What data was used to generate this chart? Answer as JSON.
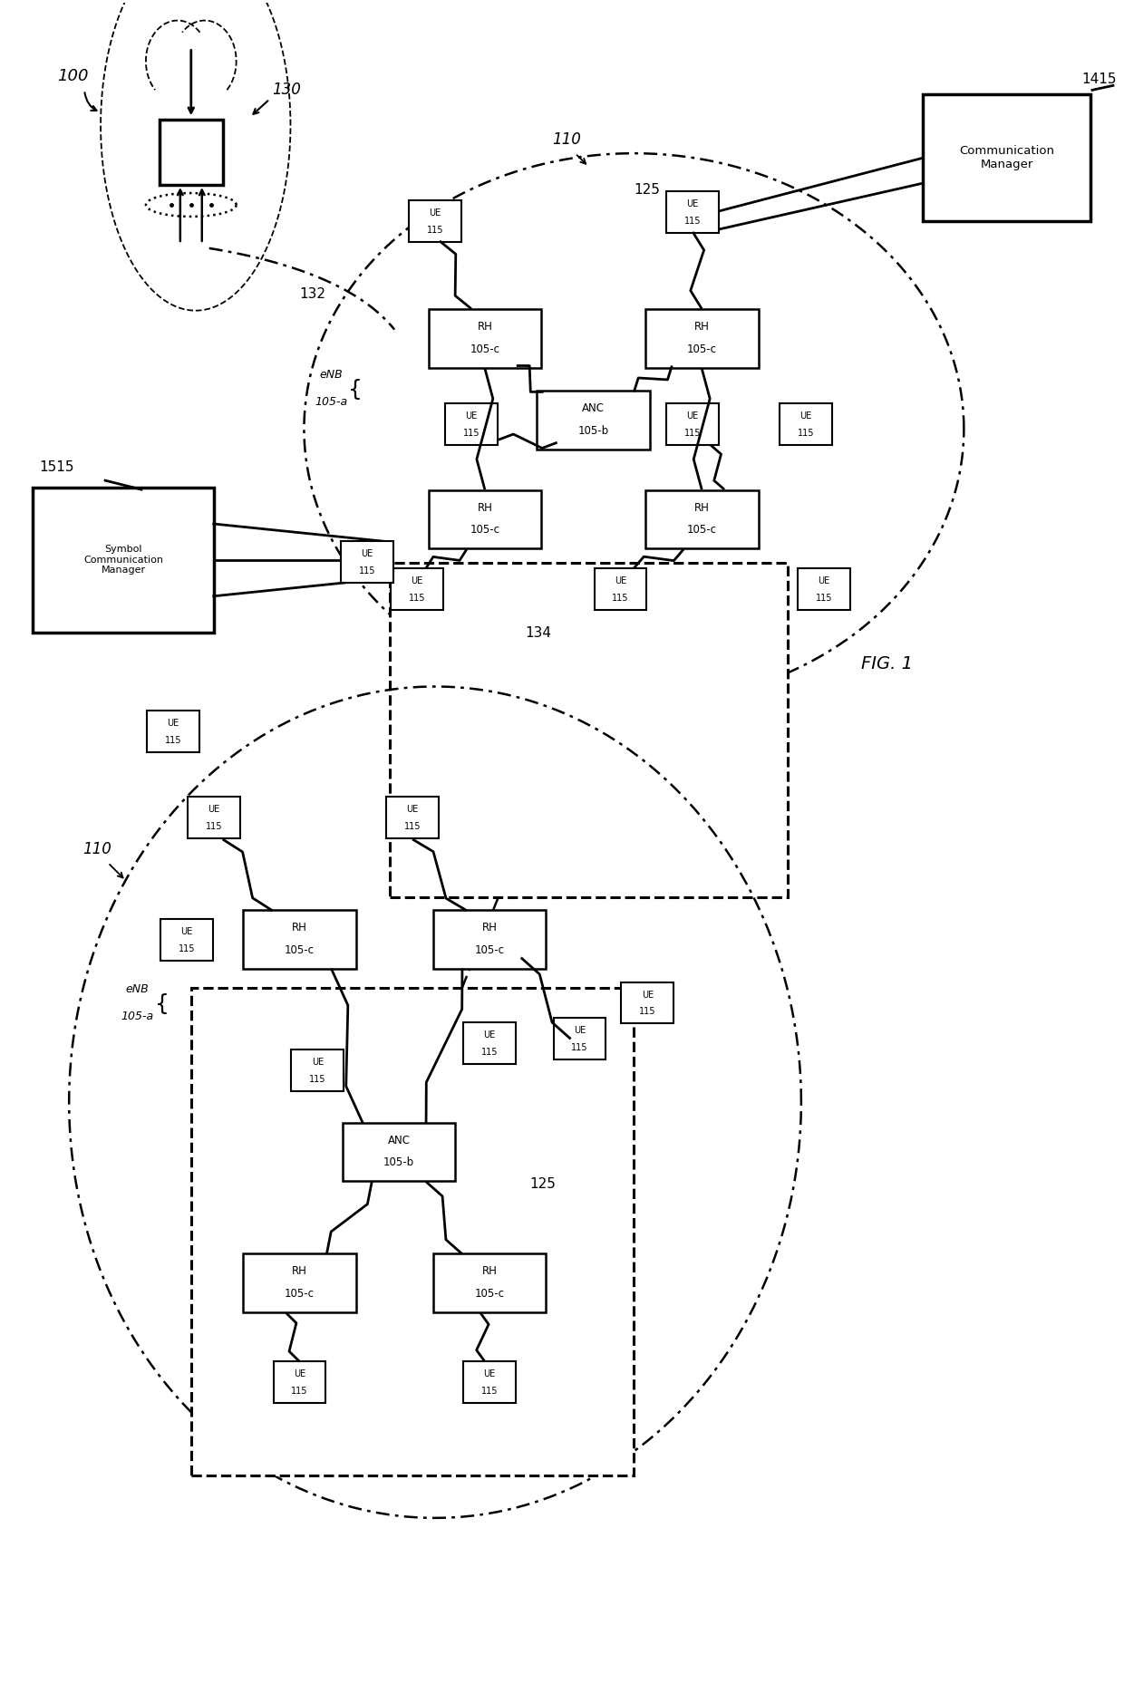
{
  "fig_width": 12.4,
  "fig_height": 18.57,
  "bg_color": "#ffffff",
  "title": "FIG. 1",
  "label_100": "100",
  "label_130": "130",
  "label_110": "110",
  "label_125": "125",
  "label_132": "132",
  "label_134": "134",
  "label_1415": "1415",
  "label_1515": "1515",
  "comm_manager_text": "Communication\nManager",
  "symbol_comm_manager_text": "Symbol\nCommunication\nManager"
}
